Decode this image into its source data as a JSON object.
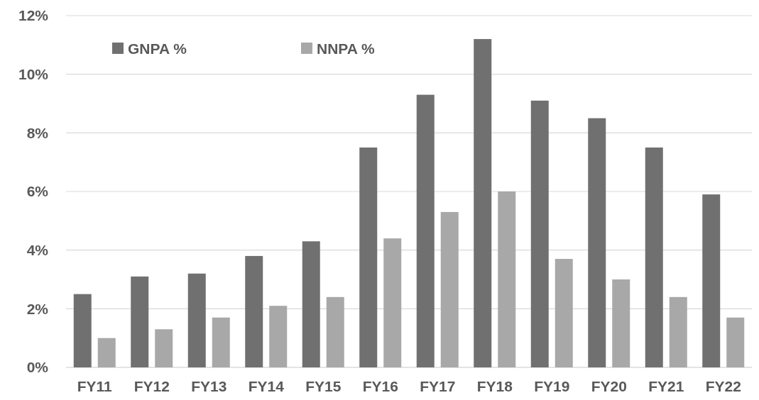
{
  "chart_data": {
    "type": "bar",
    "categories": [
      "FY11",
      "FY12",
      "FY13",
      "FY14",
      "FY15",
      "FY16",
      "FY17",
      "FY18",
      "FY19",
      "FY20",
      "FY21",
      "FY22"
    ],
    "series": [
      {
        "name": "GNPA %",
        "color": "#707070",
        "values": [
          2.5,
          3.1,
          3.2,
          3.8,
          4.3,
          7.5,
          9.3,
          11.2,
          9.1,
          8.5,
          7.5,
          5.9
        ]
      },
      {
        "name": "NNPA %",
        "color": "#a8a8a8",
        "values": [
          1.0,
          1.3,
          1.7,
          2.1,
          2.4,
          4.4,
          5.3,
          6.0,
          3.7,
          3.0,
          2.4,
          1.7
        ]
      }
    ],
    "ylim": [
      0,
      12
    ],
    "yticks": [
      {
        "value": 0,
        "label": "0%"
      },
      {
        "value": 2,
        "label": "2%"
      },
      {
        "value": 4,
        "label": "4%"
      },
      {
        "value": 6,
        "label": "6%"
      },
      {
        "value": 8,
        "label": "8%"
      },
      {
        "value": 10,
        "label": "10%"
      },
      {
        "value": 12,
        "label": "12%"
      }
    ],
    "grid": "y",
    "legend": "top left"
  }
}
